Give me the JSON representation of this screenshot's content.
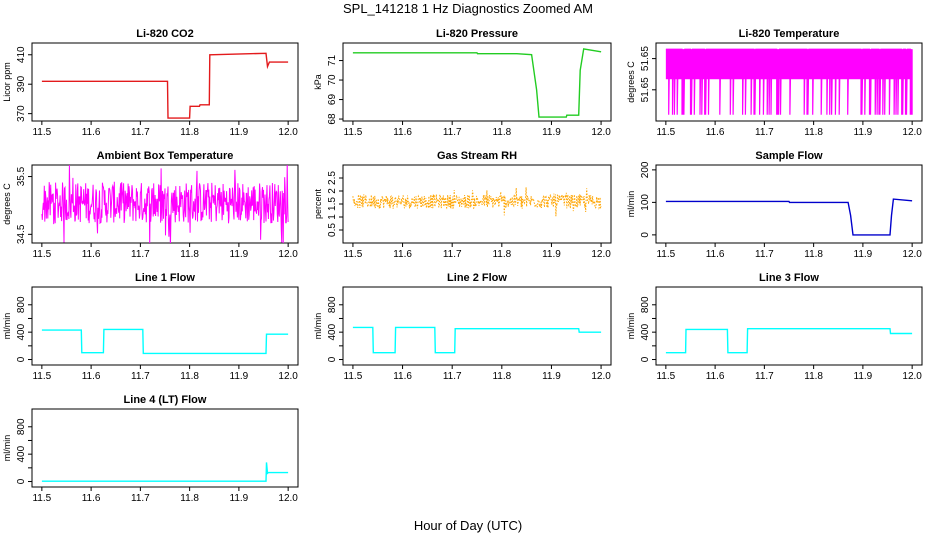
{
  "figure": {
    "title": "SPL_141218  1 Hz Diagnostics Zoomed AM",
    "xlabel": "Hour of Day (UTC)"
  },
  "chart_data": [
    {
      "type": "line",
      "title": "Li-820 CO2",
      "ylabel": "Licor ppm",
      "color": "#e31a1c",
      "xlim": [
        11.48,
        12.02
      ],
      "ylim": [
        365,
        418
      ],
      "xticks": [
        "11.5",
        "11.6",
        "11.7",
        "11.8",
        "11.9",
        "12.0"
      ],
      "yticks": [
        370,
        390,
        410
      ],
      "y_tick_labels": [
        "370",
        "390",
        "410"
      ],
      "series": [
        {
          "x": [
            11.5,
            11.755,
            11.756,
            11.8,
            11.801,
            11.82,
            11.821,
            11.84,
            11.841,
            11.955,
            11.958,
            11.962,
            11.97,
            12.0
          ],
          "y": [
            392,
            392,
            367,
            367,
            375,
            375,
            376,
            376,
            410,
            411,
            402,
            405,
            405,
            405
          ]
        }
      ]
    },
    {
      "type": "line",
      "title": "Li-820 Pressure",
      "ylabel": "kPa",
      "color": "#22cc22",
      "xlim": [
        11.48,
        12.02
      ],
      "ylim": [
        67.9,
        71.9
      ],
      "xticks": [
        "11.5",
        "11.6",
        "11.7",
        "11.8",
        "11.9",
        "12.0"
      ],
      "yticks": [
        68,
        69,
        70,
        71
      ],
      "y_tick_labels": [
        "68",
        "69",
        "70",
        "71"
      ],
      "series": [
        {
          "x": [
            11.5,
            11.75,
            11.751,
            11.83,
            11.86,
            11.87,
            11.875,
            11.93,
            11.931,
            11.955,
            11.958,
            11.965,
            12.0
          ],
          "y": [
            71.4,
            71.4,
            71.35,
            71.35,
            71.3,
            69.5,
            68.1,
            68.1,
            68.2,
            68.2,
            70.5,
            71.6,
            71.45
          ]
        }
      ]
    },
    {
      "type": "line",
      "title": "Li-820 Temperature",
      "ylabel": "degrees C",
      "color": "#ff00ff",
      "xlim": [
        11.48,
        12.02
      ],
      "ylim": [
        51.649,
        51.6515
      ],
      "xticks": [
        "11.5",
        "11.6",
        "11.7",
        "11.8",
        "11.9",
        "12.0"
      ],
      "yticks": [
        51.65,
        51.651
      ],
      "y_tick_labels": [
        "51.65",
        "51.65"
      ],
      "series": [
        {
          "pattern": "binary-toggle",
          "x_range": [
            11.5,
            12.0
          ],
          "levels": [
            51.6492,
            51.6513
          ]
        }
      ]
    },
    {
      "type": "line",
      "title": "Ambient Box Temperature",
      "ylabel": "degrees C",
      "color": "#ff00ff",
      "xlim": [
        11.48,
        12.02
      ],
      "ylim": [
        34.35,
        35.7
      ],
      "xticks": [
        "11.5",
        "11.6",
        "11.7",
        "11.8",
        "11.9",
        "12.0"
      ],
      "yticks": [
        34.5,
        35.5
      ],
      "y_tick_labels": [
        "34.5",
        "35.5"
      ],
      "series": [
        {
          "pattern": "noise",
          "x_range": [
            11.5,
            12.0
          ],
          "center": 35.05,
          "spread": 0.6
        }
      ]
    },
    {
      "type": "scatter",
      "title": "Gas Stream RH",
      "ylabel": "percent",
      "color": "#ffa500",
      "xlim": [
        11.48,
        12.02
      ],
      "ylim": [
        0.0,
        3.0
      ],
      "xticks": [
        "11.5",
        "11.6",
        "11.7",
        "11.8",
        "11.9",
        "12.0"
      ],
      "yticks": [
        0.5,
        1.0,
        1.5,
        2.0,
        2.5
      ],
      "y_tick_labels": [
        "0.5",
        "1",
        "1.5",
        "2",
        "2.5"
      ],
      "series": [
        {
          "pattern": "noise",
          "x_range": [
            11.5,
            12.0
          ],
          "center": 1.6,
          "spread": 0.45
        }
      ]
    },
    {
      "type": "line",
      "title": "Sample Flow",
      "ylabel": "ml/min",
      "color": "#0000cc",
      "xlim": [
        11.48,
        12.02
      ],
      "ylim": [
        -25,
        215
      ],
      "xticks": [
        "11.5",
        "11.6",
        "11.7",
        "11.8",
        "11.9",
        "12.0"
      ],
      "yticks": [
        0,
        100,
        200
      ],
      "y_tick_labels": [
        "0",
        "100",
        "200"
      ],
      "series": [
        {
          "x": [
            11.5,
            11.75,
            11.751,
            11.87,
            11.875,
            11.88,
            11.955,
            11.958,
            11.962,
            12.0
          ],
          "y": [
            103,
            103,
            100,
            100,
            60,
            0,
            0,
            60,
            110,
            105
          ]
        }
      ]
    },
    {
      "type": "line",
      "title": "Line 1 Flow",
      "ylabel": "ml/min",
      "color": "#00ffff",
      "xlim": [
        11.48,
        12.02
      ],
      "ylim": [
        -80,
        1060
      ],
      "xticks": [
        "11.5",
        "11.6",
        "11.7",
        "11.8",
        "11.9",
        "12.0"
      ],
      "yticks": [
        0,
        200,
        400,
        600,
        800
      ],
      "y_tick_labels": [
        "0",
        "400",
        "800"
      ],
      "series": [
        {
          "x": [
            11.5,
            11.58,
            11.581,
            11.625,
            11.626,
            11.705,
            11.706,
            11.955,
            11.956,
            12.0
          ],
          "y": [
            430,
            430,
            100,
            100,
            440,
            440,
            90,
            90,
            370,
            370
          ]
        }
      ]
    },
    {
      "type": "line",
      "title": "Line 2 Flow",
      "ylabel": "ml/min",
      "color": "#00ffff",
      "xlim": [
        11.48,
        12.02
      ],
      "ylim": [
        -80,
        1060
      ],
      "xticks": [
        "11.5",
        "11.6",
        "11.7",
        "11.8",
        "11.9",
        "12.0"
      ],
      "yticks": [
        0,
        200,
        400,
        600,
        800
      ],
      "y_tick_labels": [
        "0",
        "400",
        "800"
      ],
      "series": [
        {
          "x": [
            11.5,
            11.54,
            11.541,
            11.585,
            11.586,
            11.665,
            11.666,
            11.705,
            11.706,
            11.955,
            11.956,
            12.0
          ],
          "y": [
            470,
            470,
            100,
            100,
            470,
            470,
            100,
            100,
            450,
            450,
            400,
            400
          ]
        }
      ]
    },
    {
      "type": "line",
      "title": "Line 3 Flow",
      "ylabel": "ml/min",
      "color": "#00ffff",
      "xlim": [
        11.48,
        12.02
      ],
      "ylim": [
        -80,
        1060
      ],
      "xticks": [
        "11.5",
        "11.6",
        "11.7",
        "11.8",
        "11.9",
        "12.0"
      ],
      "yticks": [
        0,
        200,
        400,
        600,
        800
      ],
      "y_tick_labels": [
        "0",
        "400",
        "800"
      ],
      "series": [
        {
          "x": [
            11.5,
            11.54,
            11.541,
            11.625,
            11.626,
            11.665,
            11.666,
            11.955,
            11.956,
            12.0
          ],
          "y": [
            100,
            100,
            440,
            440,
            100,
            100,
            450,
            450,
            380,
            380
          ]
        }
      ]
    },
    {
      "type": "line",
      "title": "Line 4 (LT) Flow",
      "ylabel": "ml/min",
      "color": "#00ffff",
      "xlim": [
        11.48,
        12.02
      ],
      "ylim": [
        -80,
        1060
      ],
      "xticks": [
        "11.5",
        "11.6",
        "11.7",
        "11.8",
        "11.9",
        "12.0"
      ],
      "yticks": [
        0,
        200,
        400,
        600,
        800
      ],
      "y_tick_labels": [
        "0",
        "400",
        "800"
      ],
      "series": [
        {
          "x": [
            11.5,
            11.955,
            11.956,
            11.958,
            11.96,
            12.0
          ],
          "y": [
            5,
            5,
            280,
            120,
            130,
            130
          ]
        }
      ]
    }
  ]
}
